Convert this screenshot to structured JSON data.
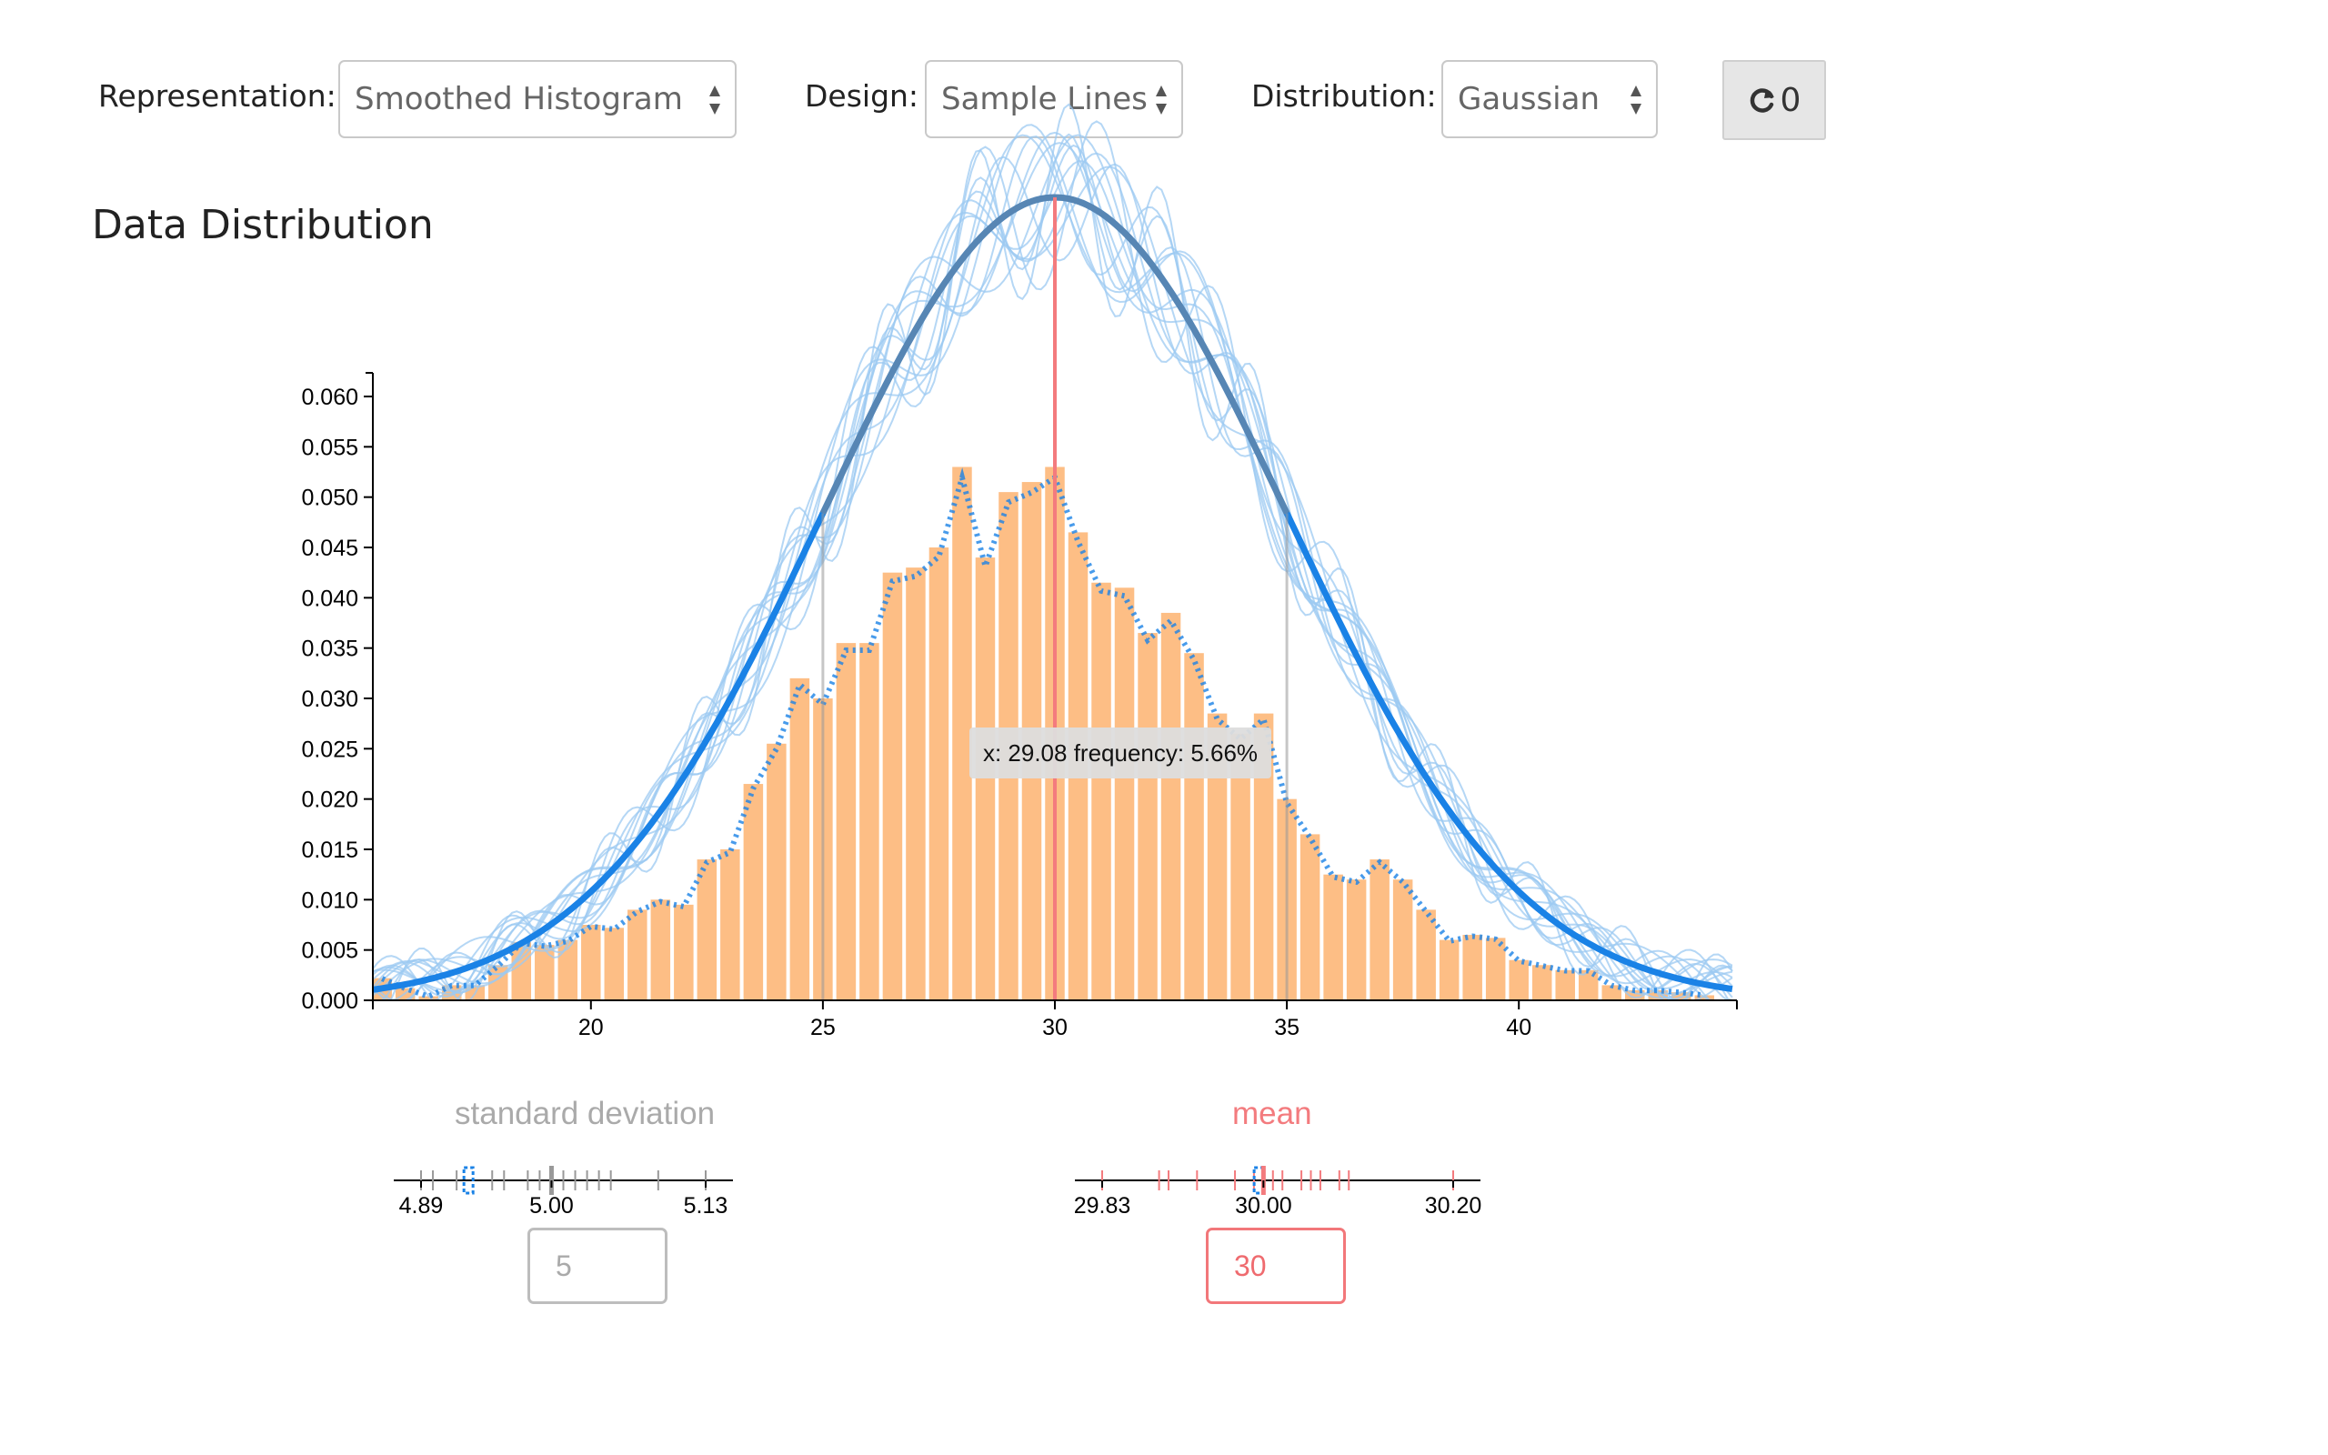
{
  "controls": {
    "representation": {
      "label": "Representation:",
      "value": "Smoothed Histogram"
    },
    "design": {
      "label": "Design:",
      "value": "Sample Lines"
    },
    "distribution": {
      "label": "Distribution:",
      "value": "Gaussian"
    },
    "refresh": {
      "icon": "refresh-icon",
      "count": "0"
    }
  },
  "section_title": "Data Distribution",
  "colors": {
    "bar": "#fdbe85",
    "bar_outline": "#e8a774",
    "mean_curve": "#1a82e6",
    "sample_lines": "#9ccaf2",
    "mean_marker": "#f37b7e",
    "stdev_marker": "#aaaaaa"
  },
  "chart_data": {
    "type": "bar",
    "title": "",
    "xlabel": "",
    "ylabel": "",
    "xlim": [
      15.3,
      44.7
    ],
    "ylim": [
      0,
      0.062
    ],
    "bin_width": 0.5,
    "x_ticks": [
      20,
      25,
      30,
      35,
      40
    ],
    "y_ticks": [
      "0.000",
      "0.005",
      "0.010",
      "0.015",
      "0.020",
      "0.025",
      "0.030",
      "0.035",
      "0.040",
      "0.045",
      "0.050",
      "0.055",
      "0.060"
    ],
    "bins": [
      {
        "x": 15.5,
        "y": 0.0022
      },
      {
        "x": 16.0,
        "y": 0.0012
      },
      {
        "x": 16.5,
        "y": 0.0004
      },
      {
        "x": 17.0,
        "y": 0.0015
      },
      {
        "x": 17.5,
        "y": 0.0015
      },
      {
        "x": 18.0,
        "y": 0.0035
      },
      {
        "x": 18.5,
        "y": 0.0058
      },
      {
        "x": 19.0,
        "y": 0.0055
      },
      {
        "x": 19.5,
        "y": 0.006
      },
      {
        "x": 20.0,
        "y": 0.0075
      },
      {
        "x": 20.5,
        "y": 0.0072
      },
      {
        "x": 21.0,
        "y": 0.009
      },
      {
        "x": 21.5,
        "y": 0.01
      },
      {
        "x": 22.0,
        "y": 0.0095
      },
      {
        "x": 22.5,
        "y": 0.014
      },
      {
        "x": 23.0,
        "y": 0.015
      },
      {
        "x": 23.5,
        "y": 0.0215
      },
      {
        "x": 24.0,
        "y": 0.0255
      },
      {
        "x": 24.5,
        "y": 0.032
      },
      {
        "x": 25.0,
        "y": 0.03
      },
      {
        "x": 25.5,
        "y": 0.0355
      },
      {
        "x": 26.0,
        "y": 0.0355
      },
      {
        "x": 26.5,
        "y": 0.0425
      },
      {
        "x": 27.0,
        "y": 0.043
      },
      {
        "x": 27.5,
        "y": 0.045
      },
      {
        "x": 28.0,
        "y": 0.053
      },
      {
        "x": 28.5,
        "y": 0.044
      },
      {
        "x": 29.0,
        "y": 0.0505
      },
      {
        "x": 29.5,
        "y": 0.0515
      },
      {
        "x": 30.0,
        "y": 0.053
      },
      {
        "x": 30.5,
        "y": 0.0465
      },
      {
        "x": 31.0,
        "y": 0.0415
      },
      {
        "x": 31.5,
        "y": 0.041
      },
      {
        "x": 32.0,
        "y": 0.0365
      },
      {
        "x": 32.5,
        "y": 0.0385
      },
      {
        "x": 33.0,
        "y": 0.0345
      },
      {
        "x": 33.5,
        "y": 0.0285
      },
      {
        "x": 34.0,
        "y": 0.0265
      },
      {
        "x": 34.5,
        "y": 0.0285
      },
      {
        "x": 35.0,
        "y": 0.02
      },
      {
        "x": 35.5,
        "y": 0.0165
      },
      {
        "x": 36.0,
        "y": 0.0125
      },
      {
        "x": 36.5,
        "y": 0.012
      },
      {
        "x": 37.0,
        "y": 0.014
      },
      {
        "x": 37.5,
        "y": 0.012
      },
      {
        "x": 38.0,
        "y": 0.009
      },
      {
        "x": 38.5,
        "y": 0.006
      },
      {
        "x": 39.0,
        "y": 0.0065
      },
      {
        "x": 39.5,
        "y": 0.0062
      },
      {
        "x": 40.0,
        "y": 0.004
      },
      {
        "x": 40.5,
        "y": 0.0035
      },
      {
        "x": 41.0,
        "y": 0.003
      },
      {
        "x": 41.5,
        "y": 0.003
      },
      {
        "x": 42.0,
        "y": 0.0015
      },
      {
        "x": 42.5,
        "y": 0.001
      },
      {
        "x": 43.0,
        "y": 0.001
      },
      {
        "x": 43.5,
        "y": 0.0008
      },
      {
        "x": 44.0,
        "y": 0.0005
      }
    ],
    "curve": {
      "mean": 30,
      "sd": 5,
      "name": ""
    },
    "sample_line_count": 14,
    "mean_line_x": 30,
    "tooltip": {
      "x": 29.08,
      "text": "x: 29.08 frequency: 5.66%"
    }
  },
  "params": {
    "stdev": {
      "title": "standard deviation",
      "value": "5",
      "axis_labels": [
        "4.89",
        "5.00",
        "5.13"
      ],
      "axis_values": [
        4.89,
        5.0,
        5.13
      ],
      "samples": [
        4.89,
        4.9,
        4.92,
        4.95,
        4.96,
        4.98,
        4.99,
        5.0,
        5.01,
        5.02,
        5.03,
        5.04,
        5.05,
        5.09,
        5.13
      ],
      "highlight": 4.93
    },
    "mean": {
      "title": "mean",
      "value": "30",
      "axis_labels": [
        "29.83",
        "30.00",
        "30.20"
      ],
      "axis_values": [
        29.83,
        30.0,
        30.2
      ],
      "samples": [
        29.83,
        29.89,
        29.9,
        29.93,
        29.97,
        29.99,
        30.0,
        30.01,
        30.02,
        30.04,
        30.05,
        30.06,
        30.08,
        30.09,
        30.2
      ],
      "highlight": 29.995
    }
  }
}
